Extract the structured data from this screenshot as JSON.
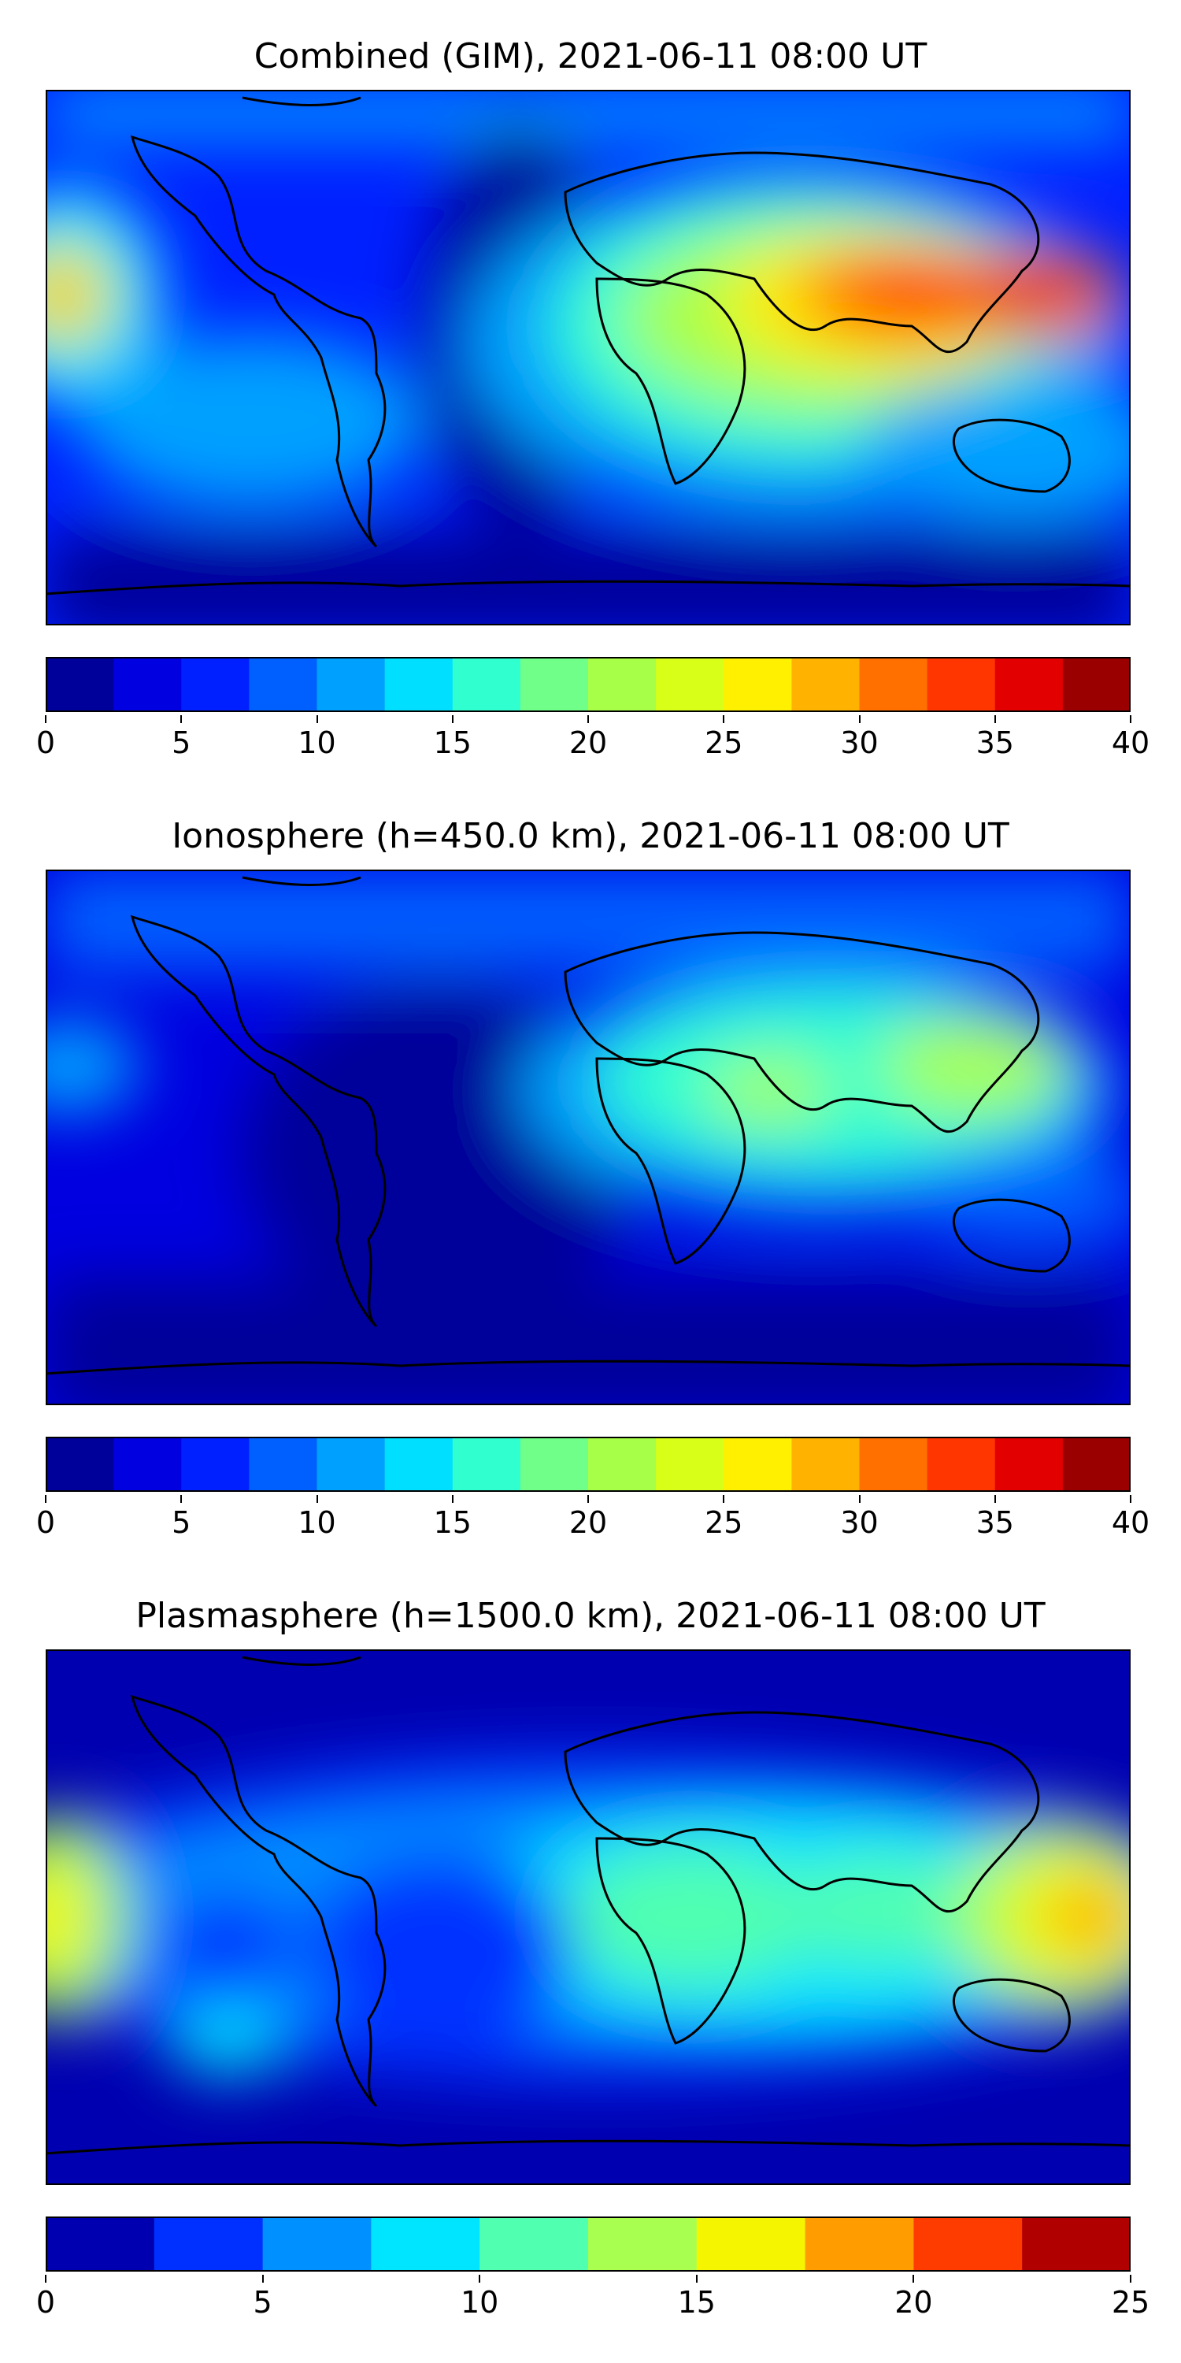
{
  "panels": [
    {
      "title": "Combined (GIM), 2021-06-11 08:00 UT",
      "colorbar": {
        "ticks": [
          "0",
          "5",
          "10",
          "15",
          "20",
          "25",
          "30",
          "35",
          "40"
        ],
        "levels": 16,
        "colors": [
          "#00009a",
          "#0000e0",
          "#0020ff",
          "#0060ff",
          "#00a0ff",
          "#00dfff",
          "#30ffd0",
          "#70ff88",
          "#a8ff48",
          "#d8ff18",
          "#fff000",
          "#ffb300",
          "#ff7000",
          "#ff3600",
          "#e20000",
          "#9a0000"
        ]
      },
      "blobs": [
        {
          "lon": 0,
          "lat": 0,
          "rx": 0,
          "ry": 0,
          "c": 0
        }
      ]
    },
    {
      "title": "Ionosphere  (h=450.0 km), 2021-06-11 08:00 UT",
      "colorbar": {
        "ticks": [
          "0",
          "5",
          "10",
          "15",
          "20",
          "25",
          "30",
          "35",
          "40"
        ],
        "levels": 16,
        "colors": [
          "#00009a",
          "#0000e0",
          "#0020ff",
          "#0060ff",
          "#00a0ff",
          "#00dfff",
          "#30ffd0",
          "#70ff88",
          "#a8ff48",
          "#d8ff18",
          "#fff000",
          "#ffb300",
          "#ff7000",
          "#ff3600",
          "#e20000",
          "#9a0000"
        ]
      }
    },
    {
      "title": "Plasmasphere (h=1500.0 km), 2021-06-11 08:00 UT",
      "colorbar": {
        "ticks": [
          "0",
          "5",
          "10",
          "15",
          "20",
          "25"
        ],
        "levels": 10,
        "colors": [
          "#0000b0",
          "#0030ff",
          "#0090ff",
          "#00e5ff",
          "#50ffb0",
          "#a8ff50",
          "#f5f500",
          "#ff9c00",
          "#ff3c00",
          "#b00000"
        ]
      }
    }
  ]
}
